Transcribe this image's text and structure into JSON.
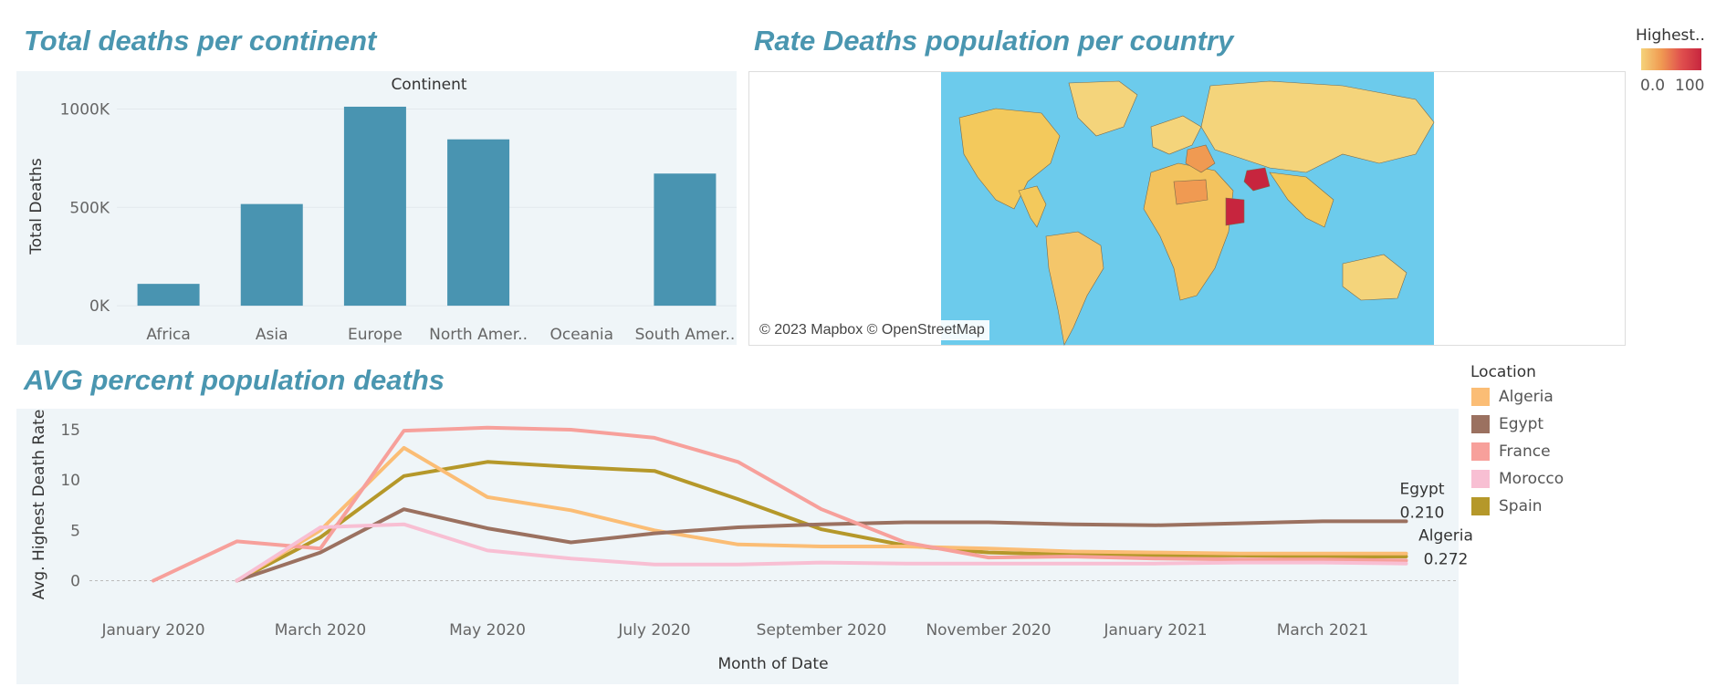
{
  "titles": {
    "continent": "Total deaths per continent",
    "map": "Rate Deaths population per country",
    "avg": "AVG percent population deaths"
  },
  "map": {
    "credit": "© 2023 Mapbox © OpenStreetMap",
    "legend_title": "Highest..",
    "legend_min": "0.0",
    "legend_max": "100",
    "colors": {
      "ocean": "#6ccbec",
      "land_low": "#f5d37a",
      "land_high": "#c7253e"
    }
  },
  "legend": {
    "title": "Location",
    "items": [
      {
        "label": "Algeria",
        "color": "#fbbd75"
      },
      {
        "label": "Egypt",
        "color": "#9b7160"
      },
      {
        "label": "France",
        "color": "#f7a09b"
      },
      {
        "label": "Morocco",
        "color": "#f8bfd3"
      },
      {
        "label": "Spain",
        "color": "#b5982a"
      }
    ]
  },
  "chart_data": [
    {
      "type": "bar",
      "title": "Total deaths per continent",
      "column_header": "Continent",
      "ylabel": "Total Deaths",
      "categories": [
        "Africa",
        "Asia",
        "Europe",
        "North Amer..",
        "Oceania",
        "South Amer.."
      ],
      "values": [
        111000,
        517000,
        1012000,
        846000,
        0,
        672000
      ],
      "ylim": [
        -60000,
        1100000
      ],
      "yticks": [
        0,
        500000,
        1000000
      ],
      "ytick_labels": [
        "0K",
        "500K",
        "1000K"
      ],
      "color": "#4994b1",
      "grid": true
    },
    {
      "type": "line",
      "title": "AVG percent population deaths",
      "xlabel": "Month of Date",
      "ylabel": "Avg. Highest Death Rate",
      "x": [
        "2020-01",
        "2020-02",
        "2020-03",
        "2020-04",
        "2020-05",
        "2020-06",
        "2020-07",
        "2020-08",
        "2020-09",
        "2020-10",
        "2020-11",
        "2020-12",
        "2021-01",
        "2021-02",
        "2021-03",
        "2021-04"
      ],
      "xtick_labels": [
        "January 2020",
        "March 2020",
        "May 2020",
        "July 2020",
        "September 2020",
        "November 2020",
        "January 2021",
        "March 2021"
      ],
      "xtick_months": [
        "2020-01",
        "2020-03",
        "2020-05",
        "2020-07",
        "2020-09",
        "2020-11",
        "2021-01",
        "2021-03"
      ],
      "ylim": [
        -1.5,
        16
      ],
      "yticks": [
        0,
        5,
        10,
        15
      ],
      "series": [
        {
          "name": "Spain",
          "color": "#b5982a",
          "values": [
            null,
            0,
            4.3,
            10.4,
            11.8,
            11.3,
            10.9,
            8.1,
            5.1,
            3.5,
            2.8,
            2.6,
            2.5,
            2.5,
            2.4,
            2.4
          ]
        },
        {
          "name": "Algeria",
          "color": "#fbbd75",
          "values": [
            null,
            0,
            5.0,
            13.2,
            8.3,
            7.0,
            5.0,
            3.6,
            3.4,
            3.4,
            3.2,
            2.9,
            2.8,
            2.7,
            2.7,
            2.7
          ]
        },
        {
          "name": "Egypt",
          "color": "#9b7160",
          "values": [
            null,
            0,
            2.8,
            7.1,
            5.2,
            3.8,
            4.7,
            5.3,
            5.6,
            5.8,
            5.8,
            5.6,
            5.5,
            5.7,
            5.9,
            5.9
          ]
        },
        {
          "name": "France",
          "color": "#f7a09b",
          "values": [
            0,
            3.9,
            3.2,
            14.9,
            15.2,
            15.0,
            14.2,
            11.8,
            7.1,
            3.8,
            2.3,
            2.4,
            2.2,
            2.1,
            2.1,
            2.0
          ]
        },
        {
          "name": "Morocco",
          "color": "#f8bfd3",
          "values": [
            null,
            0,
            5.3,
            5.6,
            3.0,
            2.2,
            1.6,
            1.6,
            1.8,
            1.7,
            1.7,
            1.7,
            1.7,
            1.8,
            1.8,
            1.7
          ]
        }
      ],
      "annotations": [
        {
          "series": "Egypt",
          "label": "Egypt",
          "value": "0.210"
        },
        {
          "series": "Algeria",
          "label": "Algeria",
          "value": "0.272"
        }
      ]
    }
  ]
}
